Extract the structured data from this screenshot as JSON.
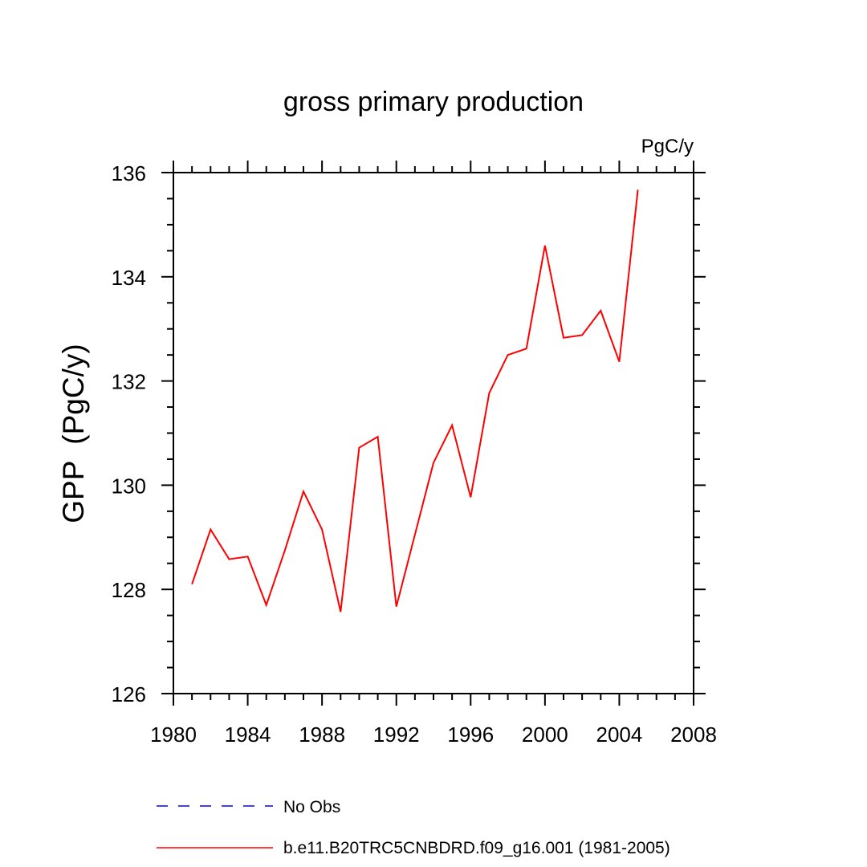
{
  "chart_data": {
    "type": "line",
    "title": "gross primary production",
    "units_label": "PgC/y",
    "xlabel": "",
    "ylabel": "GPP  (PgC/y)",
    "xlim": [
      1980,
      2008
    ],
    "ylim": [
      126,
      136
    ],
    "x_ticks": [
      1980,
      1984,
      1988,
      1992,
      1996,
      2000,
      2004,
      2008
    ],
    "y_ticks": [
      126,
      128,
      130,
      132,
      134,
      136
    ],
    "x_minor_step": 1,
    "y_minor_step": 0.5,
    "series": [
      {
        "name": "b.e11.B20TRC5CNBDRD.f09_g16.001 (1981-2005)",
        "color": "#ff0000",
        "style": "solid",
        "x": [
          1981,
          1982,
          1983,
          1984,
          1985,
          1986,
          1987,
          1988,
          1989,
          1990,
          1991,
          1992,
          1993,
          1994,
          1995,
          1996,
          1997,
          1998,
          1999,
          2000,
          2001,
          2002,
          2003,
          2004,
          2005
        ],
        "values": [
          128.1,
          129.15,
          128.58,
          128.63,
          127.7,
          128.75,
          129.88,
          129.15,
          127.57,
          130.72,
          130.93,
          127.67,
          129.05,
          130.43,
          131.15,
          129.77,
          131.77,
          132.5,
          132.62,
          134.6,
          132.83,
          132.88,
          133.35,
          132.37,
          135.67
        ]
      }
    ],
    "legend": [
      {
        "label": "No Obs",
        "color": "#0000ff",
        "style": "dashed"
      },
      {
        "label": "b.e11.B20TRC5CNBDRD.f09_g16.001 (1981-2005)",
        "color": "#ff0000",
        "style": "solid"
      }
    ]
  }
}
